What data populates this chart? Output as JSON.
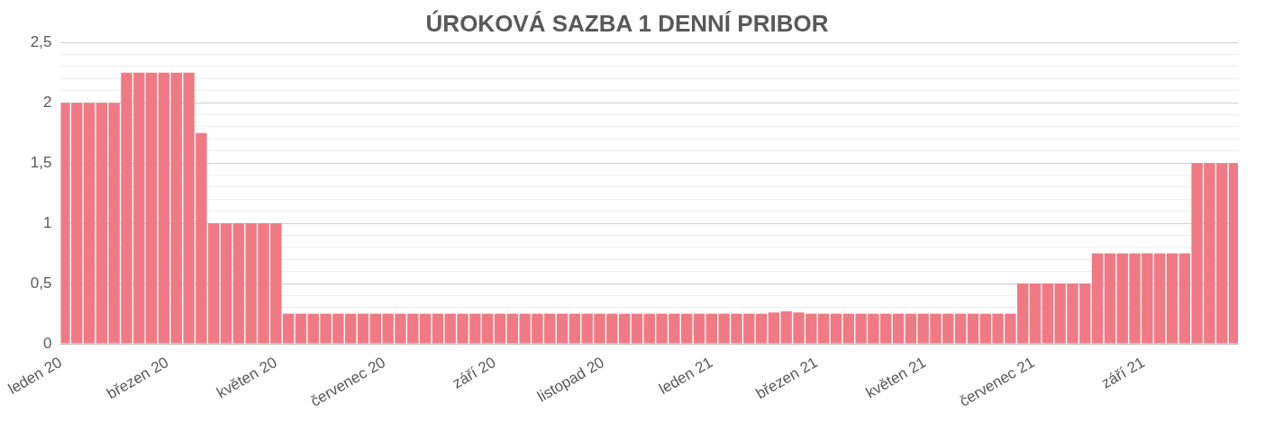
{
  "chart_data": {
    "type": "bar",
    "title": "ÚROKOVÁ SAZBA 1 DENNÍ PRIBOR",
    "x": [
      "2020-01-03",
      "2020-01-10",
      "2020-01-17",
      "2020-01-24",
      "2020-01-31",
      "2020-02-07",
      "2020-02-14",
      "2020-02-21",
      "2020-02-28",
      "2020-03-06",
      "2020-03-13",
      "2020-03-20",
      "2020-03-27",
      "2020-04-03",
      "2020-04-10",
      "2020-04-17",
      "2020-04-24",
      "2020-05-01",
      "2020-05-08",
      "2020-05-15",
      "2020-05-22",
      "2020-05-29",
      "2020-06-05",
      "2020-06-12",
      "2020-06-19",
      "2020-06-26",
      "2020-07-03",
      "2020-07-10",
      "2020-07-17",
      "2020-07-24",
      "2020-07-31",
      "2020-08-07",
      "2020-08-14",
      "2020-08-21",
      "2020-08-28",
      "2020-09-04",
      "2020-09-11",
      "2020-09-18",
      "2020-09-25",
      "2020-10-02",
      "2020-10-09",
      "2020-10-16",
      "2020-10-23",
      "2020-10-30",
      "2020-11-06",
      "2020-11-13",
      "2020-11-20",
      "2020-11-27",
      "2020-12-04",
      "2020-12-11",
      "2020-12-18",
      "2020-12-25",
      "2021-01-01",
      "2021-01-08",
      "2021-01-15",
      "2021-01-22",
      "2021-01-29",
      "2021-02-05",
      "2021-02-12",
      "2021-02-19",
      "2021-02-26",
      "2021-03-05",
      "2021-03-12",
      "2021-03-19",
      "2021-03-26",
      "2021-04-02",
      "2021-04-09",
      "2021-04-16",
      "2021-04-23",
      "2021-04-30",
      "2021-05-07",
      "2021-05-14",
      "2021-05-21",
      "2021-05-28",
      "2021-06-04",
      "2021-06-11",
      "2021-06-18",
      "2021-06-25",
      "2021-07-02",
      "2021-07-09",
      "2021-07-16",
      "2021-07-23",
      "2021-07-30",
      "2021-08-06",
      "2021-08-13",
      "2021-08-20",
      "2021-08-27",
      "2021-09-03",
      "2021-09-10",
      "2021-09-17",
      "2021-09-24",
      "2021-10-01",
      "2021-10-08",
      "2021-10-15",
      "2021-10-22"
    ],
    "values": [
      2,
      2,
      2,
      2,
      2,
      2.25,
      2.25,
      2.25,
      2.25,
      2.25,
      2.25,
      1.75,
      1,
      1,
      1,
      1,
      1,
      1,
      0.25,
      0.25,
      0.25,
      0.25,
      0.25,
      0.25,
      0.25,
      0.25,
      0.25,
      0.25,
      0.25,
      0.25,
      0.25,
      0.25,
      0.25,
      0.25,
      0.25,
      0.25,
      0.25,
      0.25,
      0.25,
      0.25,
      0.25,
      0.25,
      0.25,
      0.25,
      0.25,
      0.25,
      0.25,
      0.25,
      0.25,
      0.25,
      0.25,
      0.25,
      0.25,
      0.25,
      0.25,
      0.25,
      0.25,
      0.26,
      0.27,
      0.26,
      0.25,
      0.25,
      0.25,
      0.25,
      0.25,
      0.25,
      0.25,
      0.25,
      0.25,
      0.25,
      0.25,
      0.25,
      0.25,
      0.25,
      0.25,
      0.25,
      0.25,
      0.5,
      0.5,
      0.5,
      0.5,
      0.5,
      0.5,
      0.75,
      0.75,
      0.75,
      0.75,
      0.75,
      0.75,
      0.75,
      0.75,
      1.5,
      1.5,
      1.5,
      1.5
    ],
    "color": "#f07a84",
    "xlim": [
      "2020-01-01",
      "2021-10-24"
    ],
    "xticks": [
      {
        "value": "2020-01-01",
        "label": "leden 20"
      },
      {
        "value": "2020-03-01",
        "label": "březen 20"
      },
      {
        "value": "2020-05-01",
        "label": "květen 20"
      },
      {
        "value": "2020-07-01",
        "label": "červenec 20"
      },
      {
        "value": "2020-09-01",
        "label": "září 20"
      },
      {
        "value": "2020-11-01",
        "label": "listopad 20"
      },
      {
        "value": "2021-01-01",
        "label": "leden 21"
      },
      {
        "value": "2021-03-01",
        "label": "březen 21"
      },
      {
        "value": "2021-05-01",
        "label": "květen 21"
      },
      {
        "value": "2021-07-01",
        "label": "červenec 21"
      },
      {
        "value": "2021-09-01",
        "label": "září 21"
      }
    ],
    "ylim": [
      0,
      2.5
    ],
    "yticks": [
      0,
      {
        "value": 0.1,
        "label": null
      },
      {
        "value": 0.2,
        "label": null
      },
      {
        "value": 0.3,
        "label": null
      },
      {
        "value": 0.4,
        "label": null
      },
      {
        "value": 0.5,
        "label": "0,5"
      },
      {
        "value": 0.6,
        "label": null
      },
      {
        "value": 0.7,
        "label": null
      },
      {
        "value": 0.8,
        "label": null
      },
      {
        "value": 0.9,
        "label": null
      },
      1,
      {
        "value": 1.1,
        "label": null
      },
      {
        "value": 1.2,
        "label": null
      },
      {
        "value": 1.3,
        "label": null
      },
      {
        "value": 1.4,
        "label": null
      },
      {
        "value": 1.5,
        "label": "1,5"
      },
      {
        "value": 1.6,
        "label": null
      },
      {
        "value": 1.7,
        "label": null
      },
      {
        "value": 1.8,
        "label": null
      },
      {
        "value": 1.9,
        "label": null
      },
      2,
      {
        "value": 2.1,
        "label": null
      },
      {
        "value": 2.2,
        "label": null
      },
      {
        "value": 2.3,
        "label": null
      },
      {
        "value": 2.4,
        "label": null
      },
      {
        "value": 2.5,
        "label": "2,5"
      }
    ],
    "grid": "y",
    "legend": false
  }
}
